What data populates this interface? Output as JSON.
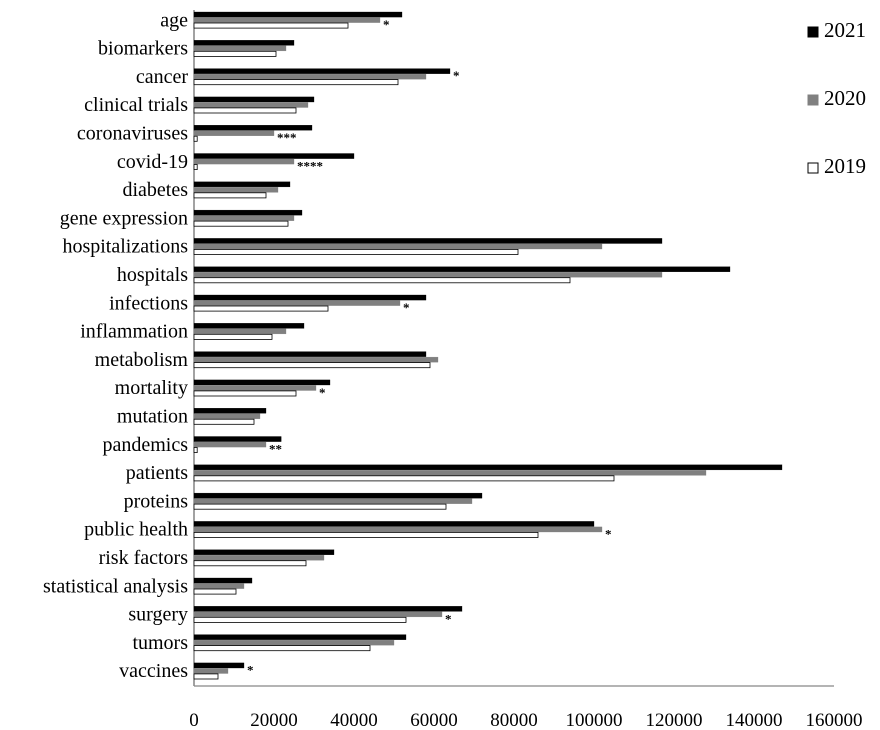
{
  "chart_data": {
    "type": "bar",
    "orientation": "horizontal",
    "categories": [
      "age",
      "biomarkers",
      "cancer",
      "clinical trials",
      "coronaviruses",
      "covid-19",
      "diabetes",
      "gene expression",
      "hospitalizations",
      "hospitals",
      "infections",
      "inflammation",
      "metabolism",
      "mortality",
      "mutation",
      "pandemics",
      "patients",
      "proteins",
      "public health",
      "risk factors",
      "statistical analysis",
      "surgery",
      "tumors",
      "vaccines"
    ],
    "series": [
      {
        "name": "2021",
        "color": "#000000",
        "values": [
          52000,
          25000,
          64000,
          30000,
          29500,
          40000,
          24000,
          27000,
          117000,
          134000,
          58000,
          27500,
          58000,
          34000,
          18000,
          21800,
          147000,
          72000,
          100000,
          35000,
          14500,
          67000,
          53000,
          12500
        ]
      },
      {
        "name": "2020",
        "color": "#808080",
        "values": [
          46500,
          23000,
          58000,
          28500,
          20000,
          25000,
          21000,
          25000,
          102000,
          117000,
          51500,
          23000,
          61000,
          30500,
          16500,
          18000,
          128000,
          69500,
          102000,
          32500,
          12500,
          62000,
          50000,
          8500
        ]
      },
      {
        "name": "2019",
        "color": "#ffffff",
        "values": [
          38500,
          20500,
          51000,
          25500,
          800,
          800,
          18000,
          23500,
          81000,
          94000,
          33500,
          19500,
          59000,
          25500,
          15000,
          800,
          105000,
          63000,
          86000,
          28000,
          10500,
          53000,
          44000,
          6000
        ]
      }
    ],
    "annotations": [
      {
        "category": "age",
        "series": "2020",
        "text": "*"
      },
      {
        "category": "cancer",
        "series": "2021",
        "text": "*"
      },
      {
        "category": "coronaviruses",
        "series": "2020",
        "text": "***"
      },
      {
        "category": "covid-19",
        "series": "2020",
        "text": "****"
      },
      {
        "category": "infections",
        "series": "2020",
        "text": "*"
      },
      {
        "category": "mortality",
        "series": "2020",
        "text": "*"
      },
      {
        "category": "pandemics",
        "series": "2020",
        "text": "**"
      },
      {
        "category": "public health",
        "series": "2020",
        "text": "*"
      },
      {
        "category": "surgery",
        "series": "2020",
        "text": "*"
      },
      {
        "category": "vaccines",
        "series": "2021",
        "text": "*"
      }
    ],
    "xticks": [
      "0",
      "20000",
      "40000",
      "60000",
      "80000",
      "100000",
      "120000",
      "140000",
      "160000"
    ],
    "xlim": [
      0,
      160000
    ],
    "title": "",
    "xlabel": "",
    "ylabel": "",
    "grid": false,
    "legend_position": "right"
  }
}
